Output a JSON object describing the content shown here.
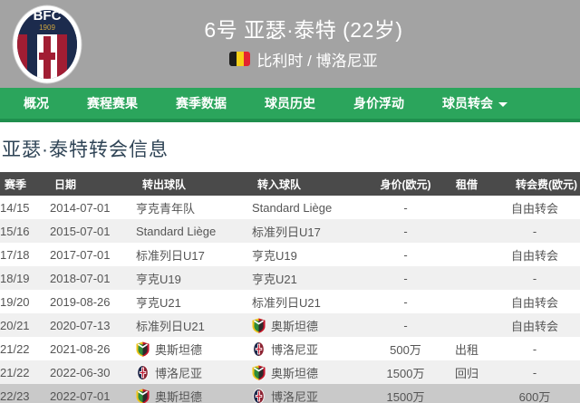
{
  "header": {
    "player_title": "6号 亚瑟·泰特 (22岁)",
    "nationality_club": "比利时 / 博洛尼亚",
    "crest": {
      "club_initials": "BFC",
      "founded_year": "1909"
    }
  },
  "nav": {
    "items": [
      {
        "label": "概况",
        "has_dropdown": false
      },
      {
        "label": "赛程赛果",
        "has_dropdown": false
      },
      {
        "label": "赛季数据",
        "has_dropdown": false
      },
      {
        "label": "球员历史",
        "has_dropdown": false
      },
      {
        "label": "身价浮动",
        "has_dropdown": false
      },
      {
        "label": "球员转会",
        "has_dropdown": true
      }
    ]
  },
  "section": {
    "title": "亚瑟·泰特转会信息"
  },
  "table": {
    "columns": [
      "赛季",
      "日期",
      "转出球队",
      "转入球队",
      "身价(欧元)",
      "租借",
      "转会费(欧元)"
    ],
    "rows": [
      {
        "season": "14/15",
        "date": "2014-07-01",
        "from": {
          "name": "亨克青年队",
          "badge": null
        },
        "to": {
          "name": "Standard Liège",
          "badge": null
        },
        "value": "-",
        "loan": "",
        "fee": "自由转会",
        "highlight": false
      },
      {
        "season": "15/16",
        "date": "2015-07-01",
        "from": {
          "name": "Standard Liège",
          "badge": null
        },
        "to": {
          "name": "标准列日U17",
          "badge": null
        },
        "value": "-",
        "loan": "",
        "fee": "-",
        "highlight": false
      },
      {
        "season": "17/18",
        "date": "2017-07-01",
        "from": {
          "name": "标准列日U17",
          "badge": null
        },
        "to": {
          "name": "亨克U19",
          "badge": null
        },
        "value": "-",
        "loan": "",
        "fee": "自由转会",
        "highlight": false
      },
      {
        "season": "18/19",
        "date": "2018-07-01",
        "from": {
          "name": "亨克U19",
          "badge": null
        },
        "to": {
          "name": "亨克U21",
          "badge": null
        },
        "value": "-",
        "loan": "",
        "fee": "-",
        "highlight": false
      },
      {
        "season": "19/20",
        "date": "2019-08-26",
        "from": {
          "name": "亨克U21",
          "badge": null
        },
        "to": {
          "name": "标准列日U21",
          "badge": null
        },
        "value": "-",
        "loan": "",
        "fee": "自由转会",
        "highlight": false
      },
      {
        "season": "20/21",
        "date": "2020-07-13",
        "from": {
          "name": "标准列日U21",
          "badge": null
        },
        "to": {
          "name": "奥斯坦德",
          "badge": "oostende"
        },
        "value": "-",
        "loan": "",
        "fee": "自由转会",
        "highlight": false
      },
      {
        "season": "21/22",
        "date": "2021-08-26",
        "from": {
          "name": "奥斯坦德",
          "badge": "oostende"
        },
        "to": {
          "name": "博洛尼亚",
          "badge": "bologna"
        },
        "value": "500万",
        "loan": "出租",
        "fee": "-",
        "highlight": false
      },
      {
        "season": "21/22",
        "date": "2022-06-30",
        "from": {
          "name": "博洛尼亚",
          "badge": "bologna"
        },
        "to": {
          "name": "奥斯坦德",
          "badge": "oostende"
        },
        "value": "1500万",
        "loan": "回归",
        "fee": "-",
        "highlight": false
      },
      {
        "season": "22/23",
        "date": "2022-07-01",
        "from": {
          "name": "奥斯坦德",
          "badge": "oostende"
        },
        "to": {
          "name": "博洛尼亚",
          "badge": "bologna"
        },
        "value": "1500万",
        "loan": "",
        "fee": "600万",
        "highlight": true
      }
    ]
  },
  "colors": {
    "header_gray": "#a3a3a3",
    "nav_green": "#2ba55c",
    "nav_green_dark": "#1f8f4e",
    "table_header_bg": "#4a4a4a",
    "row_alt_bg": "#f0f0f0",
    "row_highlight_bg": "#c9c9c9",
    "title_color": "#2f4456",
    "flag_black": "#1d1d1b",
    "flag_yellow": "#f6d018",
    "flag_red": "#e32430"
  }
}
